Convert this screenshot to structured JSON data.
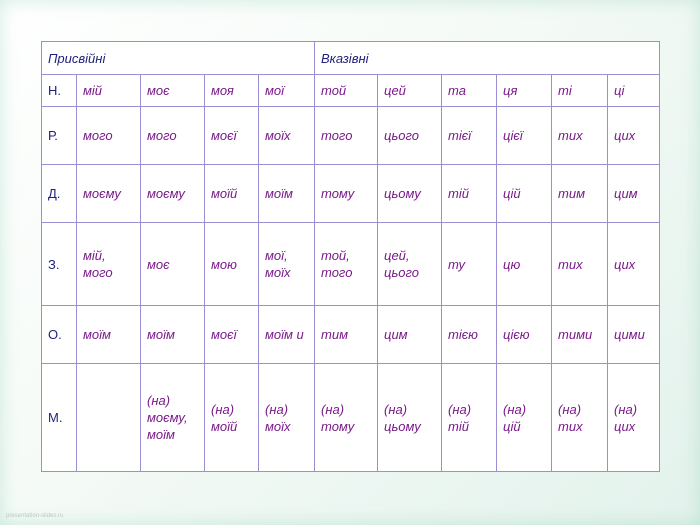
{
  "table": {
    "group_possessive": "Присвійні",
    "group_demonstrative": "Вказівні",
    "rows": [
      {
        "case": "Н.",
        "cells": [
          "мій",
          "моє",
          "моя",
          "мої",
          "той",
          "цей",
          "та",
          "ця",
          "ті",
          "ці"
        ]
      },
      {
        "case": "Р.",
        "cells": [
          "мого",
          "мого",
          "моєї",
          "моїх",
          "того",
          "цього",
          "тієї",
          "цієї",
          "тих",
          "цих"
        ]
      },
      {
        "case": "Д.",
        "cells": [
          "моєму",
          "моєму",
          "моїй",
          "моїм",
          "тому",
          "цьому",
          "тій",
          "цій",
          "тим",
          "цим"
        ]
      },
      {
        "case": "З.",
        "cells": [
          "мій, мого",
          "моє",
          "мою",
          "мої, моїх",
          "той, того",
          "цей, цього",
          "ту",
          "цю",
          "тих",
          "цих"
        ]
      },
      {
        "case": "О.",
        "cells": [
          "моїм",
          "моїм",
          "моєї",
          "моїм и",
          "тим",
          "цим",
          "тією",
          "цією",
          "тими",
          "цими"
        ]
      },
      {
        "case": "М.",
        "cells": [
          "",
          "(на) моєму, моїм",
          "(на) моїй",
          "(на) моїх",
          "(на) тому",
          "(на) цьому",
          "(на) тій",
          "(на) цій",
          "(на) тих",
          "(на) цих"
        ]
      }
    ]
  },
  "footer": {
    "watermark": "presentation-slides.ru"
  }
}
